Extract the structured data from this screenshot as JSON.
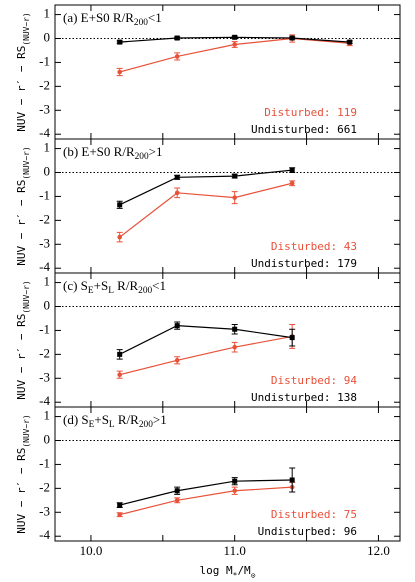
{
  "chart_data": [
    {
      "type": "line",
      "title": [
        {
          "text": "(a) E+S0 R/R"
        },
        {
          "text": "200",
          "sub": true
        },
        {
          "text": "<1"
        }
      ],
      "ylabel": [
        {
          "text": "NUV − r′ − RS"
        },
        {
          "text": "(NUV−r)",
          "sub": true
        }
      ],
      "xlim": [
        9.75,
        12.15
      ],
      "xticks": [
        10.0,
        10.5,
        11.0,
        11.5,
        12.0
      ],
      "xtick_labels": false,
      "ylim": [
        -4.2,
        1.4
      ],
      "yticks": [
        -4,
        -3,
        -2,
        -1,
        0,
        1
      ],
      "reference_line": 0,
      "series": [
        {
          "name": "Disturbed: 119",
          "color": "#e8513a",
          "marker": "circle",
          "x": [
            10.2,
            10.6,
            11.0,
            11.4,
            11.8
          ],
          "values": [
            -1.4,
            -0.75,
            -0.25,
            0.0,
            -0.2
          ],
          "errors": [
            0.15,
            0.15,
            0.12,
            0.15,
            0.1
          ]
        },
        {
          "name": "Undisturbed: 661",
          "color": "#000000",
          "marker": "square",
          "x": [
            10.2,
            10.6,
            11.0,
            11.4,
            11.8
          ],
          "values": [
            -0.15,
            0.02,
            0.05,
            0.02,
            -0.15
          ],
          "errors": [
            0.05,
            0.05,
            0.05,
            0.05,
            0.05
          ]
        }
      ]
    },
    {
      "type": "line",
      "title": [
        {
          "text": "(b) E+S0 R/R"
        },
        {
          "text": "200",
          "sub": true
        },
        {
          "text": ">1"
        }
      ],
      "ylabel": [
        {
          "text": "NUV − r′ − RS"
        },
        {
          "text": "(NUV−r)",
          "sub": true
        }
      ],
      "xlim": [
        9.75,
        12.15
      ],
      "xticks": [
        10.0,
        10.5,
        11.0,
        11.5,
        12.0
      ],
      "xtick_labels": false,
      "ylim": [
        -4.2,
        1.4
      ],
      "yticks": [
        -4,
        -3,
        -2,
        -1,
        0,
        1
      ],
      "reference_line": 0,
      "series": [
        {
          "name": "Disturbed: 43",
          "color": "#e8513a",
          "marker": "circle",
          "x": [
            10.2,
            10.6,
            11.0,
            11.4
          ],
          "values": [
            -2.7,
            -0.85,
            -1.05,
            -0.45
          ],
          "errors": [
            0.2,
            0.2,
            0.25,
            0.1
          ]
        },
        {
          "name": "Undisturbed: 179",
          "color": "#000000",
          "marker": "square",
          "x": [
            10.2,
            10.6,
            11.0,
            11.4
          ],
          "values": [
            -1.35,
            -0.2,
            -0.15,
            0.1
          ],
          "errors": [
            0.15,
            0.08,
            0.08,
            0.1
          ]
        }
      ]
    },
    {
      "type": "line",
      "title": [
        {
          "text": "(c) S"
        },
        {
          "text": "E",
          "sub": true
        },
        {
          "text": "+S"
        },
        {
          "text": "L",
          "sub": true
        },
        {
          "text": " R/R"
        },
        {
          "text": "200",
          "sub": true
        },
        {
          "text": "<1"
        }
      ],
      "ylabel": [
        {
          "text": "NUV − r′ − RS"
        },
        {
          "text": "(NUV−r)",
          "sub": true
        }
      ],
      "xlim": [
        9.75,
        12.15
      ],
      "xticks": [
        10.0,
        10.5,
        11.0,
        11.5,
        12.0
      ],
      "xtick_labels": false,
      "ylim": [
        -4.2,
        1.4
      ],
      "yticks": [
        -4,
        -3,
        -2,
        -1,
        0,
        1
      ],
      "reference_line": 0,
      "series": [
        {
          "name": "Disturbed: 94",
          "color": "#e8513a",
          "marker": "circle",
          "x": [
            10.2,
            10.6,
            11.0,
            11.4
          ],
          "values": [
            -2.85,
            -2.25,
            -1.7,
            -1.25
          ],
          "errors": [
            0.15,
            0.15,
            0.2,
            0.5
          ]
        },
        {
          "name": "Undisturbed: 138",
          "color": "#000000",
          "marker": "square",
          "x": [
            10.2,
            10.6,
            11.0,
            11.4
          ],
          "values": [
            -2.0,
            -0.8,
            -0.95,
            -1.3
          ],
          "errors": [
            0.2,
            0.15,
            0.2,
            0.35
          ]
        }
      ]
    },
    {
      "type": "line",
      "title": [
        {
          "text": "(d) S"
        },
        {
          "text": "E",
          "sub": true
        },
        {
          "text": "+S"
        },
        {
          "text": "L",
          "sub": true
        },
        {
          "text": " R/R"
        },
        {
          "text": "200",
          "sub": true
        },
        {
          "text": ">1"
        }
      ],
      "ylabel": [
        {
          "text": "NUV − r′ − RS"
        },
        {
          "text": "(NUV−r)",
          "sub": true
        }
      ],
      "xlabel": [
        {
          "text": "log M"
        },
        {
          "text": "*",
          "sub": true
        },
        {
          "text": "/M"
        },
        {
          "text": "⊙",
          "sub": true
        }
      ],
      "xlim": [
        9.75,
        12.15
      ],
      "xticks": [
        {
          "value": 10.0,
          "label": "10.0"
        },
        10.5,
        {
          "value": 11.0,
          "label": "11.0"
        },
        11.5,
        {
          "value": 12.0,
          "label": "12.0"
        }
      ],
      "xtick_labels": true,
      "ylim": [
        -4.2,
        1.4
      ],
      "yticks": [
        -4,
        -3,
        -2,
        -1,
        0,
        1
      ],
      "reference_line": 0,
      "series": [
        {
          "name": "Disturbed: 75",
          "color": "#e8513a",
          "marker": "circle",
          "x": [
            10.2,
            10.6,
            11.0,
            11.4
          ],
          "values": [
            -3.1,
            -2.5,
            -2.1,
            -1.95
          ],
          "errors": [
            0.08,
            0.1,
            0.15,
            0.2
          ]
        },
        {
          "name": "Undisturbed: 96",
          "color": "#000000",
          "marker": "square",
          "x": [
            10.2,
            10.6,
            11.0,
            11.4
          ],
          "values": [
            -2.7,
            -2.1,
            -1.7,
            -1.65
          ],
          "errors": [
            0.1,
            0.15,
            0.15,
            0.5
          ]
        }
      ]
    }
  ]
}
